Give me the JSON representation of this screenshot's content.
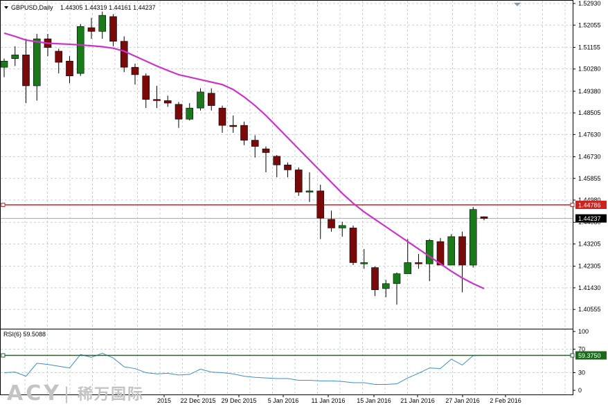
{
  "header": {
    "symbol": "GBPUSD,Daily",
    "ohlc": "1.44305 1.44319 1.44161 1.44237"
  },
  "watermark": {
    "latin": "ACY",
    "separator": "|",
    "cn": "稀万国际"
  },
  "colors": {
    "bull": "#1a7a1a",
    "bear": "#7a0a0a",
    "ma": "#cc33cc",
    "rsi": "#3a8ec8",
    "resistance": "#cc2222",
    "level": "#1a6a1a",
    "grid": "#c8d0d8"
  },
  "chart_data": [
    {
      "type": "candlestick",
      "name": "GBPUSD,Daily",
      "ylim": [
        1.4,
        1.5293
      ],
      "y_ticks": [
        "1.52930",
        "1.52055",
        "1.51155",
        "1.50280",
        "1.49380",
        "1.48505",
        "1.47630",
        "1.46730",
        "1.45855",
        "1.44980",
        "1.44080",
        "1.43205",
        "1.42305",
        "1.41430",
        "1.40555"
      ],
      "x_labels": [
        "2015",
        "22 Dec 2015",
        "29 Dec 2015",
        "5 Jan 2016",
        "11 Jan 2016",
        "15 Jan 2016",
        "21 Jan 2016",
        "27 Jan 2016",
        "2 Feb 2016"
      ],
      "horizontal_lines": [
        {
          "label": "1.44786",
          "value": 1.44786,
          "style": "resistance"
        },
        {
          "label": "1.44237",
          "value": 1.44237,
          "style": "current"
        }
      ],
      "grid": true,
      "candles": [
        {
          "o": 1.5035,
          "h": 1.507,
          "l": 1.4995,
          "c": 1.506
        },
        {
          "o": 1.507,
          "h": 1.512,
          "l": 1.504,
          "c": 1.5085
        },
        {
          "o": 1.5085,
          "h": 1.515,
          "l": 1.489,
          "c": 1.496
        },
        {
          "o": 1.496,
          "h": 1.517,
          "l": 1.49,
          "c": 1.515
        },
        {
          "o": 1.515,
          "h": 1.517,
          "l": 1.508,
          "c": 1.5115
        },
        {
          "o": 1.51,
          "h": 1.511,
          "l": 1.501,
          "c": 1.5055
        },
        {
          "o": 1.506,
          "h": 1.508,
          "l": 1.497,
          "c": 1.5
        },
        {
          "o": 1.501,
          "h": 1.521,
          "l": 1.5,
          "c": 1.52
        },
        {
          "o": 1.5195,
          "h": 1.5235,
          "l": 1.515,
          "c": 1.518
        },
        {
          "o": 1.518,
          "h": 1.526,
          "l": 1.515,
          "c": 1.5245
        },
        {
          "o": 1.524,
          "h": 1.525,
          "l": 1.512,
          "c": 1.514
        },
        {
          "o": 1.514,
          "h": 1.516,
          "l": 1.5015,
          "c": 1.5035
        },
        {
          "o": 1.5035,
          "h": 1.505,
          "l": 1.4965,
          "c": 1.5005
        },
        {
          "o": 1.5,
          "h": 1.501,
          "l": 1.487,
          "c": 1.4905
        },
        {
          "o": 1.4905,
          "h": 1.496,
          "l": 1.487,
          "c": 1.49
        },
        {
          "o": 1.49,
          "h": 1.492,
          "l": 1.4875,
          "c": 1.489
        },
        {
          "o": 1.4885,
          "h": 1.4895,
          "l": 1.479,
          "c": 1.4825
        },
        {
          "o": 1.4825,
          "h": 1.489,
          "l": 1.482,
          "c": 1.487
        },
        {
          "o": 1.487,
          "h": 1.495,
          "l": 1.486,
          "c": 1.4935
        },
        {
          "o": 1.493,
          "h": 1.495,
          "l": 1.486,
          "c": 1.488
        },
        {
          "o": 1.487,
          "h": 1.488,
          "l": 1.477,
          "c": 1.48
        },
        {
          "o": 1.48,
          "h": 1.484,
          "l": 1.477,
          "c": 1.4795
        },
        {
          "o": 1.48,
          "h": 1.4815,
          "l": 1.472,
          "c": 1.474
        },
        {
          "o": 1.474,
          "h": 1.476,
          "l": 1.467,
          "c": 1.4715
        },
        {
          "o": 1.4705,
          "h": 1.4715,
          "l": 1.461,
          "c": 1.469
        },
        {
          "o": 1.4675,
          "h": 1.468,
          "l": 1.459,
          "c": 1.464
        },
        {
          "o": 1.464,
          "h": 1.465,
          "l": 1.459,
          "c": 1.462
        },
        {
          "o": 1.462,
          "h": 1.463,
          "l": 1.4515,
          "c": 1.453
        },
        {
          "o": 1.453,
          "h": 1.461,
          "l": 1.449,
          "c": 1.4535
        },
        {
          "o": 1.4535,
          "h": 1.456,
          "l": 1.434,
          "c": 1.4425
        },
        {
          "o": 1.442,
          "h": 1.4455,
          "l": 1.437,
          "c": 1.4385
        },
        {
          "o": 1.4385,
          "h": 1.441,
          "l": 1.435,
          "c": 1.4395
        },
        {
          "o": 1.4385,
          "h": 1.4395,
          "l": 1.4235,
          "c": 1.4245
        },
        {
          "o": 1.424,
          "h": 1.43,
          "l": 1.422,
          "c": 1.4245
        },
        {
          "o": 1.4225,
          "h": 1.423,
          "l": 1.411,
          "c": 1.4135
        },
        {
          "o": 1.414,
          "h": 1.4175,
          "l": 1.4105,
          "c": 1.416
        },
        {
          "o": 1.416,
          "h": 1.4205,
          "l": 1.4075,
          "c": 1.42
        },
        {
          "o": 1.42,
          "h": 1.434,
          "l": 1.42,
          "c": 1.4245
        },
        {
          "o": 1.4245,
          "h": 1.428,
          "l": 1.422,
          "c": 1.424
        },
        {
          "o": 1.424,
          "h": 1.434,
          "l": 1.417,
          "c": 1.4335
        },
        {
          "o": 1.433,
          "h": 1.4345,
          "l": 1.4235,
          "c": 1.4235
        },
        {
          "o": 1.4235,
          "h": 1.436,
          "l": 1.4235,
          "c": 1.435
        },
        {
          "o": 1.435,
          "h": 1.437,
          "l": 1.4125,
          "c": 1.4235
        },
        {
          "o": 1.4235,
          "h": 1.447,
          "l": 1.4225,
          "c": 1.446
        },
        {
          "o": 1.44305,
          "h": 1.44319,
          "l": 1.44161,
          "c": 1.44237
        }
      ],
      "moving_average": [
        1.5173,
        1.516,
        1.5145,
        1.5138,
        1.5132,
        1.513,
        1.5128,
        1.5125,
        1.5122,
        1.5118,
        1.5112,
        1.51,
        1.508,
        1.506,
        1.504,
        1.5022,
        1.5005,
        1.4995,
        1.4985,
        1.4975,
        1.4965,
        1.4945,
        1.4915,
        1.488,
        1.484,
        1.4795,
        1.475,
        1.4705,
        1.466,
        1.4615,
        1.457,
        1.4525,
        1.4485,
        1.445,
        1.442,
        1.439,
        1.436,
        1.433,
        1.43,
        1.427,
        1.424,
        1.421,
        1.4183,
        1.416,
        1.414
      ]
    },
    {
      "type": "line",
      "name": "RSI(6)",
      "label": "RSI(6) 59.5088",
      "ylim": [
        0,
        100
      ],
      "y_ticks": [
        "100",
        "70",
        "30",
        "0"
      ],
      "level": {
        "label": "59.3750",
        "value": 59.375
      },
      "values": [
        30,
        31,
        24,
        46,
        44,
        41,
        38,
        61,
        56,
        63,
        55,
        40,
        37,
        30,
        28,
        29,
        26,
        27,
        36,
        31,
        30,
        28,
        24,
        22,
        21,
        20,
        20,
        17,
        17,
        16,
        16,
        15,
        13,
        13,
        10,
        10,
        11,
        21,
        29,
        38,
        37,
        53,
        43,
        59,
        59.5
      ]
    }
  ]
}
